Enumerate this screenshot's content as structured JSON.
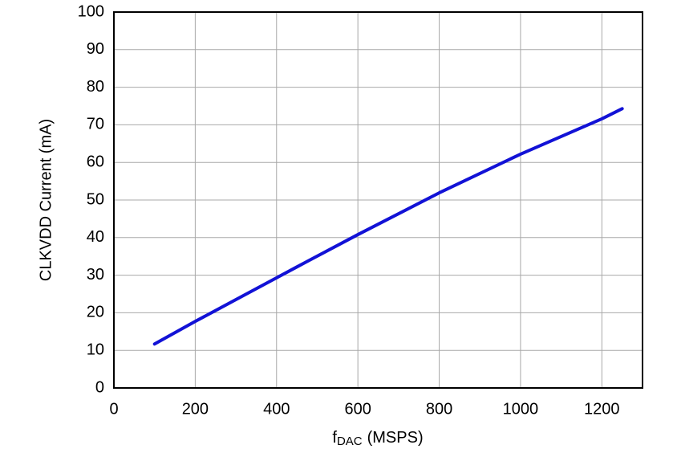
{
  "chart_data": {
    "type": "line",
    "x_label": {
      "main": "f",
      "sub": "DAC",
      "unit": "(MSPS)"
    },
    "y_label": "CLKVDD Current (mA)",
    "series": [
      {
        "color": "#1212d6",
        "x": [
          100,
          200,
          300,
          400,
          450,
          600,
          800,
          1000,
          1200,
          1250
        ],
        "values": [
          11.7,
          17.7,
          23.5,
          29.3,
          32.2,
          40.8,
          51.9,
          62.2,
          71.6,
          74.3
        ]
      }
    ],
    "xlim": [
      0,
      1300
    ],
    "xticks": [
      0,
      200,
      400,
      600,
      800,
      1000,
      1200
    ],
    "ylim": [
      0,
      100
    ],
    "yticks": [
      0,
      10,
      20,
      30,
      40,
      50,
      60,
      70,
      80,
      90,
      100
    ],
    "grid": true
  }
}
